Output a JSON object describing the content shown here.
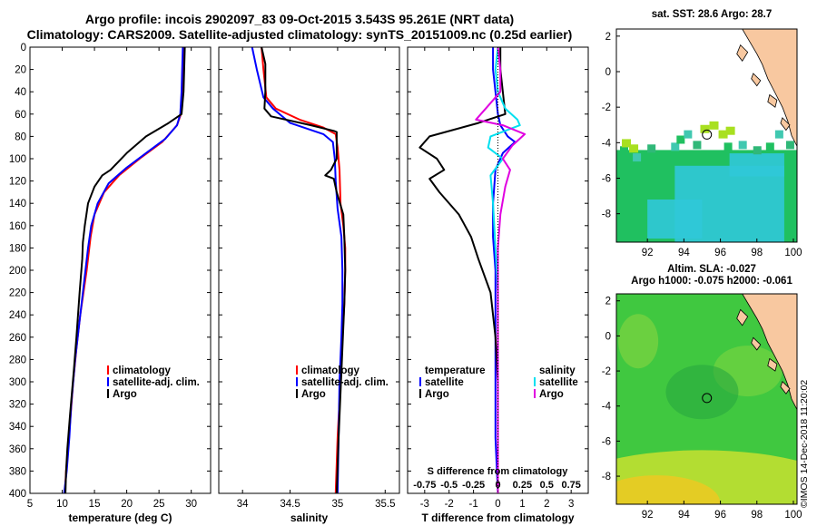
{
  "title_line1": "Argo profile: incois 2902097_83 09-Oct-2015 3.543S 95.261E (NRT data)",
  "title_line2": "Climatology: CARS2009. Satellite-adjusted climatology: synTS_20151009.nc (0.25d earlier)",
  "credit": "©IMOS 14-Dec-2018 11:20:02",
  "colors": {
    "climatology": "#ff0000",
    "satellite": "#0000ff",
    "argo": "#000000",
    "sat_salinity": "#00e0f0",
    "argo_salinity": "#e000e0"
  },
  "chart_data": [
    {
      "type": "line",
      "name": "temperature",
      "xlabel": "temperature (deg C)",
      "ylabel": "",
      "xlim": [
        5,
        33
      ],
      "ylim": [
        0,
        400
      ],
      "y_inverted": true,
      "xticks": [
        5,
        10,
        15,
        20,
        25,
        30
      ],
      "xtick_labels": [
        "5",
        "10",
        "15",
        "20",
        "25",
        "30"
      ],
      "yticks": [
        0,
        20,
        40,
        60,
        80,
        100,
        120,
        140,
        160,
        180,
        200,
        220,
        240,
        260,
        280,
        300,
        320,
        340,
        360,
        380,
        400
      ],
      "ytick_labels": [
        "0",
        "20",
        "40",
        "60",
        "80",
        "100",
        "120",
        "140",
        "160",
        "180",
        "200",
        "220",
        "240",
        "260",
        "280",
        "300",
        "320",
        "340",
        "360",
        "380",
        "400"
      ],
      "legend": [
        "climatology",
        "satellite-adj. clim.",
        "Argo"
      ],
      "series": [
        {
          "name": "climatology",
          "color": "#ff0000",
          "points": [
            [
              28.9,
              0
            ],
            [
              28.8,
              20
            ],
            [
              28.6,
              40
            ],
            [
              28.4,
              60
            ],
            [
              27.8,
              70
            ],
            [
              25.5,
              85
            ],
            [
              22,
              100
            ],
            [
              18.8,
              115
            ],
            [
              16.5,
              130
            ],
            [
              15,
              150
            ],
            [
              14.4,
              170
            ],
            [
              13.8,
              200
            ],
            [
              12.8,
              240
            ],
            [
              12.2,
              270
            ],
            [
              11.7,
              300
            ],
            [
              11.3,
              330
            ],
            [
              10.9,
              360
            ],
            [
              10.6,
              380
            ],
            [
              10.4,
              400
            ]
          ]
        },
        {
          "name": "satellite-adj. clim.",
          "color": "#0000ff",
          "points": [
            [
              28.7,
              0
            ],
            [
              28.6,
              20
            ],
            [
              28.5,
              40
            ],
            [
              28.3,
              60
            ],
            [
              27.8,
              70
            ],
            [
              26,
              82
            ],
            [
              23,
              95
            ],
            [
              20,
              108
            ],
            [
              17.2,
              122
            ],
            [
              15.5,
              140
            ],
            [
              14.5,
              160
            ],
            [
              14,
              180
            ],
            [
              13.2,
              220
            ],
            [
              12.6,
              250
            ],
            [
              12,
              280
            ],
            [
              11.4,
              320
            ],
            [
              11.1,
              350
            ],
            [
              10.7,
              380
            ],
            [
              10.3,
              400
            ]
          ]
        },
        {
          "name": "Argo",
          "color": "#000000",
          "points": [
            [
              29,
              0
            ],
            [
              28.9,
              20
            ],
            [
              28.8,
              40
            ],
            [
              28.5,
              60
            ],
            [
              26.5,
              68
            ],
            [
              23,
              80
            ],
            [
              20,
              95
            ],
            [
              17.5,
              110
            ],
            [
              16.2,
              115
            ],
            [
              15,
              125
            ],
            [
              14,
              140
            ],
            [
              13.5,
              160
            ],
            [
              13.2,
              175
            ],
            [
              13.1,
              190
            ],
            [
              12.7,
              220
            ],
            [
              12.2,
              260
            ],
            [
              11.8,
              290
            ],
            [
              11.2,
              330
            ],
            [
              10.8,
              360
            ],
            [
              10.6,
              380
            ],
            [
              10.5,
              400
            ]
          ]
        }
      ]
    },
    {
      "type": "line",
      "name": "salinity",
      "xlabel": "salinity",
      "xlim": [
        33.75,
        35.65
      ],
      "ylim": [
        0,
        400
      ],
      "y_inverted": true,
      "xticks": [
        34,
        34.5,
        35,
        35.5
      ],
      "xtick_labels": [
        "34",
        "34.5",
        "35",
        "35.5"
      ],
      "legend": [
        "climatology",
        "satellite-adj. clim.",
        "Argo"
      ],
      "series": [
        {
          "name": "climatology",
          "color": "#ff0000",
          "points": [
            [
              34.2,
              0
            ],
            [
              34.22,
              20
            ],
            [
              34.25,
              45
            ],
            [
              34.35,
              55
            ],
            [
              34.6,
              65
            ],
            [
              34.85,
              72
            ],
            [
              34.98,
              78
            ],
            [
              35,
              90
            ],
            [
              35.02,
              110
            ],
            [
              35.03,
              140
            ],
            [
              35.06,
              160
            ],
            [
              35.08,
              180
            ],
            [
              35.08,
              200
            ],
            [
              35.07,
              230
            ],
            [
              35.05,
              260
            ],
            [
              35.03,
              300
            ],
            [
              35,
              350
            ],
            [
              34.98,
              400
            ]
          ]
        },
        {
          "name": "satellite-adj. clim.",
          "color": "#0000ff",
          "points": [
            [
              34.1,
              0
            ],
            [
              34.15,
              20
            ],
            [
              34.22,
              45
            ],
            [
              34.32,
              55
            ],
            [
              34.5,
              68
            ],
            [
              34.85,
              78
            ],
            [
              34.95,
              85
            ],
            [
              34.97,
              100
            ],
            [
              34.98,
              120
            ],
            [
              35,
              145
            ],
            [
              35.04,
              170
            ],
            [
              35.05,
              200
            ],
            [
              35.05,
              230
            ],
            [
              35.04,
              260
            ],
            [
              35.02,
              300
            ],
            [
              35.01,
              350
            ],
            [
              35,
              400
            ]
          ]
        },
        {
          "name": "Argo",
          "color": "#000000",
          "points": [
            [
              34.2,
              0
            ],
            [
              34.24,
              15
            ],
            [
              34.24,
              40
            ],
            [
              34.23,
              55
            ],
            [
              34.3,
              62
            ],
            [
              34.72,
              70
            ],
            [
              34.96,
              75
            ],
            [
              34.99,
              76
            ],
            [
              34.99,
              100
            ],
            [
              34.93,
              110
            ],
            [
              34.87,
              115
            ],
            [
              34.96,
              118
            ],
            [
              34.99,
              130
            ],
            [
              35.06,
              150
            ],
            [
              35.07,
              170
            ],
            [
              35.08,
              200
            ],
            [
              35.07,
              230
            ],
            [
              35.05,
              270
            ],
            [
              35.03,
              310
            ],
            [
              35.01,
              350
            ],
            [
              34.99,
              400
            ]
          ]
        }
      ]
    },
    {
      "type": "line",
      "name": "difference",
      "xlabel": "T difference from climatology",
      "secondary_xlabel": "S difference from climatology",
      "xlim": [
        -3.7,
        3.7
      ],
      "ylim": [
        0,
        400
      ],
      "y_inverted": true,
      "xticks": [
        -3,
        -2,
        -1,
        0,
        1,
        2,
        3
      ],
      "xtick_labels": [
        "-3",
        "-2",
        "-1",
        "0",
        "1",
        "2",
        "3"
      ],
      "secondary_xtick_labels": [
        "-0.75",
        "-0.5",
        "-0.25",
        "0",
        "0.25",
        "0.5",
        "0.75"
      ],
      "legend_temperature": [
        "temperature",
        "satellite",
        "Argo"
      ],
      "legend_salinity": [
        "salinity",
        "satellite",
        "Argo"
      ],
      "series": [
        {
          "name": "temperature satellite",
          "color": "#0000ff",
          "points": [
            [
              -0.2,
              0
            ],
            [
              -0.2,
              20
            ],
            [
              -0.1,
              40
            ],
            [
              0,
              60
            ],
            [
              0.1,
              70
            ],
            [
              0.4,
              80
            ],
            [
              0.7,
              85
            ],
            [
              0.2,
              95
            ],
            [
              -0.1,
              110
            ],
            [
              -0.2,
              140
            ],
            [
              -0.2,
              170
            ],
            [
              -0.1,
              200
            ],
            [
              -0.1,
              250
            ],
            [
              -0.1,
              300
            ],
            [
              -0.1,
              350
            ],
            [
              0,
              400
            ]
          ]
        },
        {
          "name": "temperature Argo",
          "color": "#000000",
          "points": [
            [
              0.1,
              0
            ],
            [
              0.1,
              20
            ],
            [
              0.2,
              40
            ],
            [
              0.3,
              60
            ],
            [
              -0.8,
              68
            ],
            [
              -2.8,
              80
            ],
            [
              -3.2,
              90
            ],
            [
              -2.5,
              100
            ],
            [
              -2.2,
              110
            ],
            [
              -2.8,
              118
            ],
            [
              -2.4,
              130
            ],
            [
              -1.6,
              150
            ],
            [
              -1.1,
              170
            ],
            [
              -0.8,
              190
            ],
            [
              -0.3,
              220
            ],
            [
              -0.2,
              240
            ],
            [
              -0.1,
              260
            ],
            [
              0,
              300
            ],
            [
              0,
              350
            ],
            [
              0,
              400
            ]
          ]
        },
        {
          "name": "salinity satellite",
          "color": "#00e0f0",
          "points": [
            [
              0,
              0
            ],
            [
              -0.1,
              20
            ],
            [
              0,
              40
            ],
            [
              0.3,
              55
            ],
            [
              0.8,
              65
            ],
            [
              0.9,
              70
            ],
            [
              -0.3,
              80
            ],
            [
              -0.4,
              90
            ],
            [
              0.2,
              100
            ],
            [
              -0.3,
              115
            ],
            [
              -0.2,
              140
            ],
            [
              -0.1,
              180
            ],
            [
              0,
              220
            ],
            [
              0,
              260
            ],
            [
              0,
              300
            ],
            [
              0,
              340
            ],
            [
              0,
              400
            ]
          ]
        },
        {
          "name": "salinity Argo",
          "color": "#e000e0",
          "points": [
            [
              0,
              0
            ],
            [
              0.1,
              20
            ],
            [
              0.1,
              40
            ],
            [
              -0.5,
              55
            ],
            [
              -0.9,
              65
            ],
            [
              0.2,
              70
            ],
            [
              1.1,
              78
            ],
            [
              0.6,
              88
            ],
            [
              0.2,
              100
            ],
            [
              0.5,
              110
            ],
            [
              0.3,
              125
            ],
            [
              0.1,
              150
            ],
            [
              0,
              180
            ],
            [
              0,
              220
            ],
            [
              0,
              260
            ],
            [
              0,
              300
            ],
            [
              0,
              350
            ],
            [
              0,
              400
            ]
          ]
        }
      ]
    }
  ],
  "maps": [
    {
      "title": "sat. SST: 28.6 Argo: 28.7",
      "xticks": [
        92,
        94,
        96,
        98,
        100
      ],
      "yticks": [
        2,
        0,
        -2,
        -4,
        -6,
        -8
      ],
      "xlim": [
        90.3,
        100.2
      ],
      "ylim": [
        -9.6,
        2.4
      ],
      "argo_lon": 95.261,
      "argo_lat": -3.543
    },
    {
      "title_line1": "Altim. SLA: -0.027",
      "title_line2": "Argo h1000: -0.075 h2000: -0.061",
      "xticks": [
        92,
        94,
        96,
        98,
        100
      ],
      "yticks": [
        2,
        0,
        -2,
        -4,
        -6,
        -8
      ],
      "xlim": [
        90.3,
        100.2
      ],
      "ylim": [
        -9.6,
        2.4
      ],
      "argo_lon": 95.261,
      "argo_lat": -3.543
    }
  ]
}
